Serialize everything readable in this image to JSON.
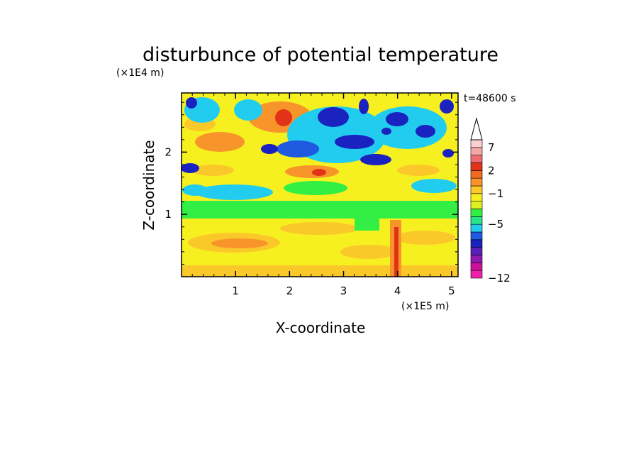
{
  "chart_data": {
    "type": "heatmap",
    "title": "disturbunce of potential temperature",
    "xlabel": "X-coordinate",
    "ylabel": "Z-coordinate",
    "x_unit": "(×1E5 m)",
    "y_unit": "(×1E4 m)",
    "time_label": "t=48600 s",
    "xlim": [
      0,
      5.12
    ],
    "ylim": [
      0,
      2.95
    ],
    "x_ticks": [
      {
        "value": 1,
        "label": "1"
      },
      {
        "value": 2,
        "label": "2"
      },
      {
        "value": 3,
        "label": "3"
      },
      {
        "value": 4,
        "label": "4"
      },
      {
        "value": 5,
        "label": "5"
      }
    ],
    "y_ticks": [
      {
        "value": 1,
        "label": "1"
      },
      {
        "value": 2,
        "label": "2"
      }
    ],
    "colorbar": {
      "extend_top": true,
      "colors": [
        "#ee22aa",
        "#cc1199",
        "#8e1ab0",
        "#5a1fb8",
        "#1a22c0",
        "#1f5ae0",
        "#22ccee",
        "#27e38a",
        "#33ee44",
        "#ddf022",
        "#f7f020",
        "#fbc82a",
        "#f8952a",
        "#f06a20",
        "#e23318",
        "#ee6c70",
        "#f3a8a8",
        "#fbd0d0"
      ],
      "labels": [
        {
          "value": -12,
          "label": "−12"
        },
        {
          "value": -5,
          "label": "−5"
        },
        {
          "value": -1,
          "label": "−1"
        },
        {
          "value": 2,
          "label": "2"
        },
        {
          "value": 7,
          "label": "7"
        }
      ]
    }
  }
}
